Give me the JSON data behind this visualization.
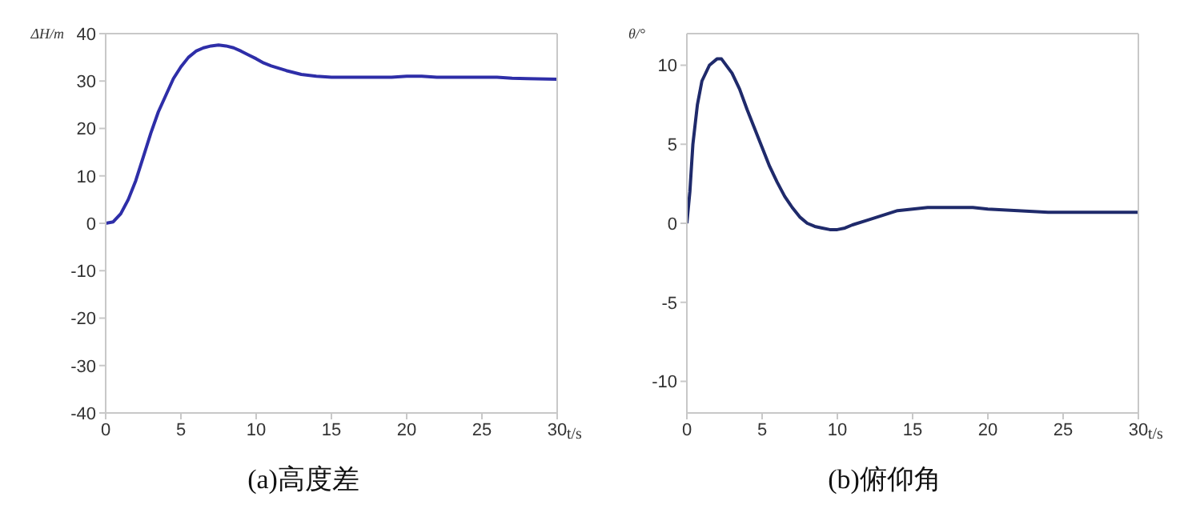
{
  "chart_data": [
    {
      "type": "line",
      "title": "(a)高度差",
      "xlabel": "t/s",
      "ylabel": "ΔH/m",
      "xlim": [
        0,
        30
      ],
      "xticks": [
        0,
        5,
        10,
        15,
        20,
        25,
        30
      ],
      "ylim": [
        -40,
        40
      ],
      "yticks": [
        -40,
        -30,
        -20,
        -10,
        0,
        10,
        20,
        30,
        40
      ],
      "line_style": "solid",
      "series": [
        {
          "color": "#2e2ea8",
          "x": [
            0,
            0.5,
            1,
            1.5,
            2,
            2.5,
            3,
            3.5,
            4,
            4.5,
            5,
            5.5,
            6,
            6.5,
            7,
            7.5,
            8,
            8.5,
            9,
            9.5,
            10,
            10.5,
            11,
            12,
            13,
            14,
            15,
            17,
            19,
            20,
            21,
            22,
            24,
            26,
            27,
            28,
            30
          ],
          "values": [
            0,
            0.3,
            2,
            5,
            9,
            14,
            19,
            23.5,
            27,
            30.5,
            33,
            35,
            36.3,
            37,
            37.4,
            37.6,
            37.4,
            37,
            36.3,
            35.5,
            34.7,
            33.8,
            33.2,
            32.2,
            31.4,
            31,
            30.8,
            30.8,
            30.8,
            31,
            31,
            30.8,
            30.8,
            30.8,
            30.6,
            30.5,
            30.4
          ]
        }
      ]
    },
    {
      "type": "line",
      "title": "(b)俯仰角",
      "xlabel": "t/s",
      "ylabel": "θ/°",
      "xlim": [
        0,
        30
      ],
      "xticks": [
        0,
        5,
        10,
        15,
        20,
        25,
        30
      ],
      "ylim": [
        -12,
        12
      ],
      "yticks": [
        -10,
        -5,
        0,
        5,
        10
      ],
      "line_style": "solid",
      "series": [
        {
          "color": "#1f2a6b",
          "x": [
            0,
            0.2,
            0.4,
            0.7,
            1,
            1.5,
            2,
            2.3,
            3,
            3.5,
            4,
            4.5,
            5,
            5.5,
            6,
            6.5,
            7,
            7.5,
            8,
            8.5,
            9,
            9.5,
            10,
            10.5,
            11,
            12,
            13,
            14,
            15,
            16,
            18,
            19,
            20,
            22,
            24,
            26,
            30
          ],
          "values": [
            0,
            2,
            5,
            7.5,
            9,
            10,
            10.4,
            10.4,
            9.5,
            8.5,
            7.2,
            6,
            4.8,
            3.6,
            2.6,
            1.7,
            1,
            0.4,
            0,
            -0.2,
            -0.3,
            -0.4,
            -0.4,
            -0.3,
            -0.1,
            0.2,
            0.5,
            0.8,
            0.9,
            1,
            1,
            1,
            0.9,
            0.8,
            0.7,
            0.7,
            0.7
          ]
        }
      ]
    }
  ]
}
